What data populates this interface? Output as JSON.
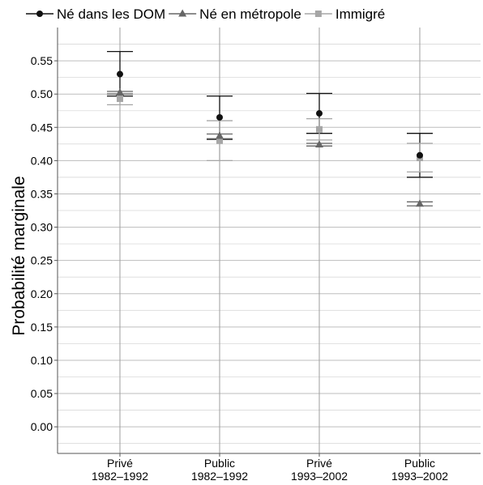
{
  "chart_data": {
    "type": "scatter",
    "title": "",
    "xlabel": "",
    "ylabel": "Probabilité marginale",
    "ylim": [
      -0.04,
      0.6
    ],
    "yticks": [
      "0.00",
      "0.05",
      "0.10",
      "0.15",
      "0.20",
      "0.25",
      "0.30",
      "0.35",
      "0.40",
      "0.45",
      "0.50",
      "0.55"
    ],
    "ytick_values": [
      0.0,
      0.05,
      0.1,
      0.15,
      0.2,
      0.25,
      0.3,
      0.35,
      0.4,
      0.45,
      0.5,
      0.55
    ],
    "categories": [
      {
        "line1": "Privé",
        "line2": "1982–1992"
      },
      {
        "line1": "Public",
        "line2": "1982–1992"
      },
      {
        "line1": "Privé",
        "line2": "1993–2002"
      },
      {
        "line1": "Public",
        "line2": "1993–2002"
      }
    ],
    "grid": true,
    "legend_position": "top",
    "series": [
      {
        "name": "Né dans les DOM",
        "marker": "circle",
        "color": "#111111",
        "values": [
          0.53,
          0.465,
          0.471,
          0.408
        ],
        "lower": [
          0.497,
          0.432,
          0.441,
          0.375
        ],
        "upper": [
          0.564,
          0.497,
          0.501,
          0.441
        ]
      },
      {
        "name": "Né en métropole",
        "marker": "triangle",
        "color": "#666666",
        "values": [
          0.502,
          0.437,
          0.424,
          0.335
        ],
        "lower": [
          0.5,
          0.433,
          0.422,
          0.332
        ],
        "upper": [
          0.504,
          0.44,
          0.426,
          0.338
        ]
      },
      {
        "name": "Immigré",
        "marker": "square",
        "color": "#a6a6a6",
        "values": [
          0.493,
          0.43,
          0.447,
          0.404
        ],
        "lower": [
          0.484,
          0.4,
          0.431,
          0.383
        ],
        "upper": [
          0.501,
          0.46,
          0.463,
          0.426
        ]
      }
    ]
  }
}
